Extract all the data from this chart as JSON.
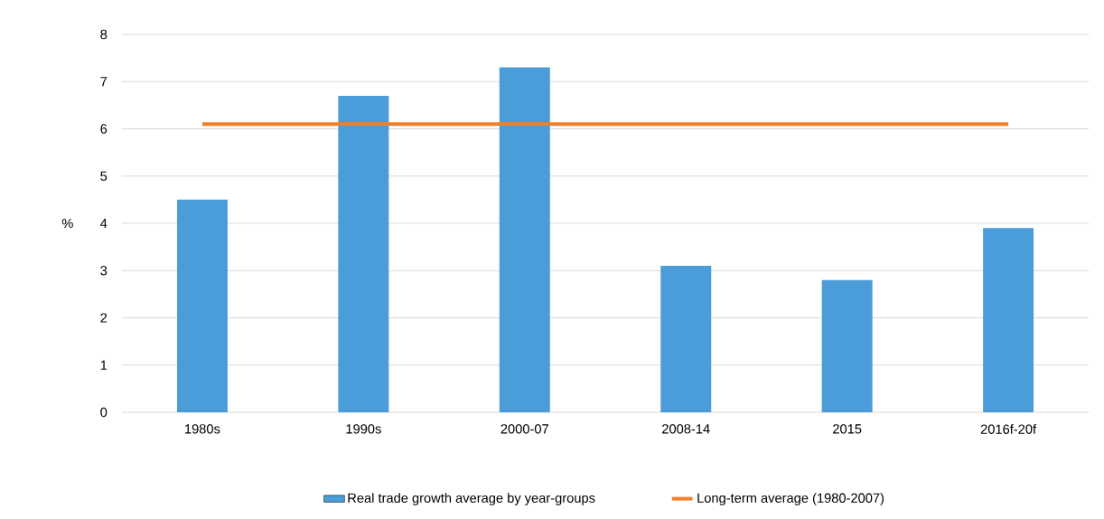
{
  "chart_data": {
    "type": "bar",
    "ylabel": "%",
    "categories": [
      "1980s",
      "1990s",
      "2000-07",
      "2008-14",
      "2015",
      "2016f-20f"
    ],
    "series": [
      {
        "name": "Real trade growth average by year-groups",
        "color": "#4a9dd8",
        "values": [
          4.5,
          6.7,
          7.3,
          3.1,
          2.8,
          3.9
        ]
      },
      {
        "name": "Long-term average (1980-2007)",
        "type": "line",
        "color": "#f07f2a",
        "values": [
          6.1,
          6.1,
          6.1,
          6.1,
          6.1,
          6.1
        ]
      }
    ],
    "ylim": [
      0,
      8
    ],
    "yticks": [
      0,
      1,
      2,
      3,
      4,
      5,
      6,
      7,
      8
    ],
    "grid": "y",
    "legend": "bottom"
  }
}
